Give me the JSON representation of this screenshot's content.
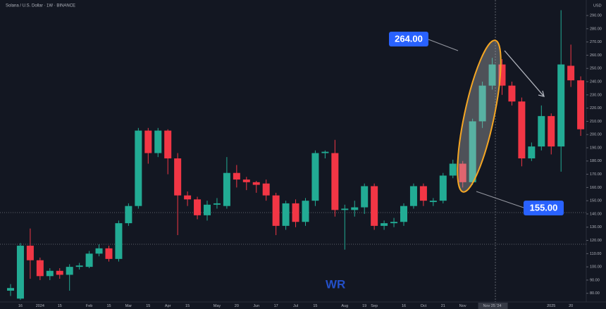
{
  "chart_data": {
    "type": "candlestick",
    "title": "Solana / U.S. Dollar · 1W · BINANCE",
    "currency": "USD",
    "watermark": "WR",
    "annotations": [
      "264.00",
      "155.00"
    ],
    "up_color": "#22ab94",
    "down_color": "#f23645",
    "categories": [
      null,
      "16",
      null,
      "2024",
      null,
      "15",
      null,
      null,
      "Feb",
      null,
      "15",
      null,
      "Mar",
      null,
      "15",
      null,
      "Apr",
      null,
      "15",
      null,
      null,
      "May",
      null,
      "20",
      null,
      "Jun",
      null,
      "17",
      null,
      "Jul",
      null,
      "15",
      null,
      null,
      "Aug",
      null,
      "19",
      "Sep",
      null,
      null,
      "16",
      null,
      "Oct",
      null,
      "21",
      null,
      "Nov",
      null,
      null,
      "Nov 25 '24",
      null,
      null,
      null,
      null,
      null,
      "2025",
      null,
      "20",
      null
    ],
    "open": [
      82,
      76,
      116,
      105,
      93,
      97,
      94,
      100,
      100,
      110,
      114,
      106,
      133,
      146,
      203,
      186,
      203,
      182,
      154,
      151,
      139,
      147,
      146,
      171,
      166,
      164,
      163,
      154,
      131,
      148,
      134,
      150,
      186,
      186,
      143,
      143,
      145,
      161,
      131,
      133,
      134,
      146,
      161,
      149,
      150,
      169,
      178,
      164,
      210,
      237,
      253,
      237,
      225,
      182,
      191,
      214,
      191,
      252,
      241
    ],
    "high": [
      87,
      118,
      129,
      107,
      99,
      99,
      102,
      103,
      112,
      117,
      116,
      135,
      148,
      205,
      205,
      205,
      204,
      186,
      157,
      153,
      150,
      152,
      183,
      177,
      168,
      165,
      166,
      156,
      150,
      151,
      152,
      188,
      188,
      196,
      147,
      150,
      163,
      163,
      135,
      137,
      148,
      163,
      163,
      152,
      171,
      181,
      180,
      212,
      240,
      258,
      257,
      240,
      228,
      194,
      222,
      216,
      294,
      268,
      244
    ],
    "low": [
      78,
      75,
      91,
      90,
      90,
      91,
      82,
      98,
      99,
      108,
      104,
      104,
      131,
      144,
      178,
      183,
      170,
      124,
      146,
      136,
      135,
      144,
      144,
      160,
      158,
      156,
      150,
      124,
      128,
      130,
      131,
      146,
      182,
      138,
      113,
      138,
      140,
      128,
      128,
      130,
      131,
      144,
      146,
      146,
      148,
      167,
      160,
      162,
      205,
      234,
      230,
      222,
      176,
      180,
      188,
      185,
      172,
      236,
      199
    ],
    "close": [
      84,
      116,
      105,
      93,
      97,
      94,
      100,
      101,
      110,
      114,
      106,
      133,
      146,
      203,
      186,
      203,
      182,
      154,
      151,
      139,
      147,
      148,
      171,
      166,
      164,
      162,
      154,
      131,
      148,
      134,
      150,
      186,
      187,
      143,
      144,
      145,
      161,
      131,
      133,
      134,
      146,
      161,
      150,
      150,
      169,
      178,
      164,
      210,
      237,
      253,
      237,
      225,
      182,
      191,
      214,
      191,
      253,
      241,
      204
    ],
    "ylim": [
      74,
      298
    ],
    "yticks": [
      {
        "value": 80,
        "label": "80.00"
      },
      {
        "value": 90,
        "label": "90.00"
      },
      {
        "value": 100,
        "label": "100.00"
      },
      {
        "value": 110,
        "label": "110.00"
      },
      {
        "value": 120,
        "label": "120.00"
      },
      {
        "value": 130,
        "label": "130.00"
      },
      {
        "value": 140,
        "label": "140.00"
      },
      {
        "value": 150,
        "label": "150.00"
      },
      {
        "value": 160,
        "label": "160.00"
      },
      {
        "value": 170,
        "label": "170.00"
      },
      {
        "value": 180,
        "label": "180.00"
      },
      {
        "value": 190,
        "label": "190.00"
      },
      {
        "value": 200,
        "label": "200.00"
      },
      {
        "value": 210,
        "label": "210.00"
      },
      {
        "value": 220,
        "label": "220.00"
      },
      {
        "value": 230,
        "label": "230.00"
      },
      {
        "value": 240,
        "label": "240.00"
      },
      {
        "value": 250,
        "label": "250.00"
      },
      {
        "value": 260,
        "label": "260.00"
      },
      {
        "value": 270,
        "label": "270.00"
      },
      {
        "value": 280,
        "label": "280.00"
      },
      {
        "value": 290,
        "label": "290.00"
      }
    ]
  }
}
